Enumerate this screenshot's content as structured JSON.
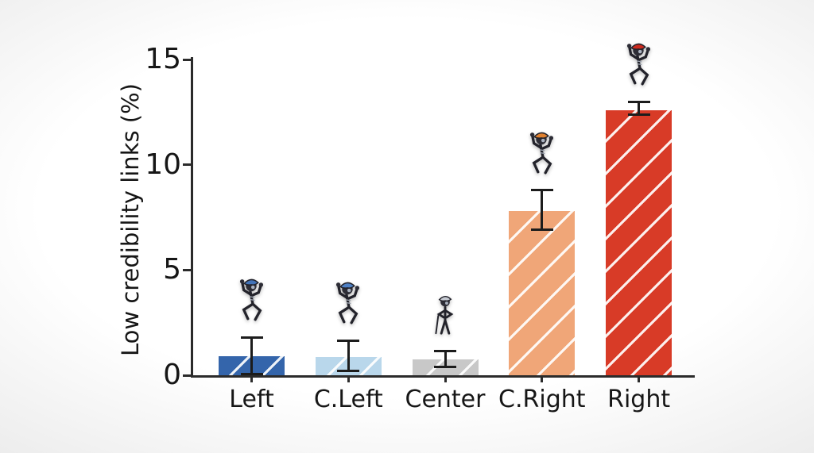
{
  "figure": {
    "background_color": "#ffffff",
    "axis_color": "#2b2b2b",
    "text_color": "#161616"
  },
  "chart_data": {
    "type": "bar",
    "title": "",
    "xlabel": "",
    "ylabel": "Low credibility links (%)",
    "ylim": [
      0,
      15
    ],
    "yticks": [
      0,
      5,
      10,
      15
    ],
    "grid": false,
    "legend": "none",
    "hatch_pattern": "/",
    "hatch_color": "#ffffff",
    "categories": [
      "Left",
      "C.Left",
      "Center",
      "C.Right",
      "Right"
    ],
    "series": [
      {
        "name": "Low credibility links (%)",
        "values": [
          0.9,
          0.85,
          0.75,
          7.8,
          12.6
        ],
        "error_low": [
          0.05,
          0.2,
          0.4,
          6.9,
          12.4
        ],
        "error_high": [
          1.8,
          1.65,
          1.15,
          8.8,
          13.0
        ]
      }
    ],
    "bar_colors": [
      "#3465ab",
      "#b9d7eb",
      "#c8c8c8",
      "#f0a678",
      "#d83b27"
    ],
    "error_bar_color": "#1c1c1c",
    "annotations": [
      {
        "category": "Left",
        "icon": "running-troll-icon",
        "pose": "running",
        "hat_color": "#4273b8"
      },
      {
        "category": "C.Left",
        "icon": "running-troll-icon",
        "pose": "running",
        "hat_color": "#4e80c4"
      },
      {
        "category": "Center",
        "icon": "standing-troll-icon",
        "pose": "standing",
        "hat_color": "#c6cad2"
      },
      {
        "category": "C.Right",
        "icon": "running-troll-icon",
        "pose": "running",
        "hat_color": "#e0812f"
      },
      {
        "category": "Right",
        "icon": "running-troll-icon",
        "pose": "running",
        "hat_color": "#cd2a1e"
      }
    ]
  }
}
